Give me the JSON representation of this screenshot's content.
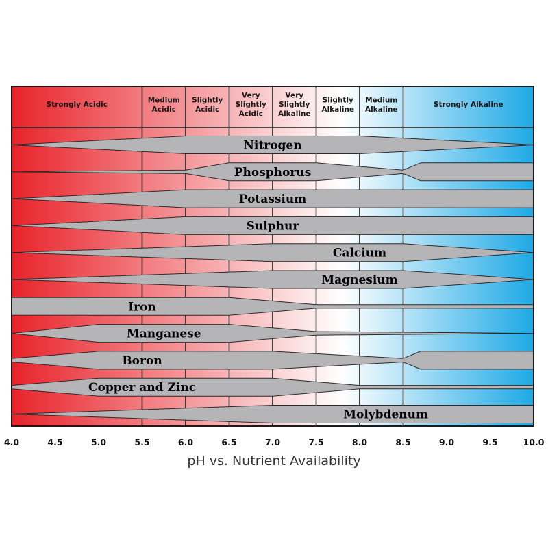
{
  "chart_data": {
    "type": "area",
    "title": "pH vs. Nutrient Availability",
    "xlim": [
      4.0,
      10.0
    ],
    "x_ticks": [
      "4.0",
      "4.5",
      "5.0",
      "5.5",
      "6.0",
      "6.5",
      "7.0",
      "7.5",
      "8.0",
      "8.5",
      "9.0",
      "9.5",
      "10.0"
    ],
    "zones": [
      {
        "label": [
          "Strongly Acidic"
        ],
        "from": 4.0,
        "to": 5.5
      },
      {
        "label": [
          "Medium",
          "Acidic"
        ],
        "from": 5.5,
        "to": 6.0
      },
      {
        "label": [
          "Slightly",
          "Acidic"
        ],
        "from": 6.0,
        "to": 6.5
      },
      {
        "label": [
          "Very",
          "Slightly",
          "Acidic"
        ],
        "from": 6.5,
        "to": 7.0
      },
      {
        "label": [
          "Very",
          "Slightly",
          "Alkaline"
        ],
        "from": 7.0,
        "to": 7.5
      },
      {
        "label": [
          "Slightly",
          "Alkaline"
        ],
        "from": 7.5,
        "to": 8.0
      },
      {
        "label": [
          "Medium",
          "Alkaline"
        ],
        "from": 8.0,
        "to": 8.5
      },
      {
        "label": [
          "Strongly Alkaline"
        ],
        "from": 8.5,
        "to": 10.0
      }
    ],
    "series": [
      {
        "name": "Nitrogen",
        "label_at": 7.0,
        "profile": [
          [
            4.0,
            0.0
          ],
          [
            6.0,
            1.0
          ],
          [
            8.0,
            1.0
          ],
          [
            10.0,
            0.0
          ]
        ]
      },
      {
        "name": "Phosphorus",
        "label_at": 7.0,
        "profile": [
          [
            4.0,
            0.0
          ],
          [
            6.0,
            0.2
          ],
          [
            6.5,
            1.0
          ],
          [
            7.5,
            1.0
          ],
          [
            8.5,
            0.2
          ],
          [
            8.7,
            1.0
          ],
          [
            10.0,
            1.0
          ]
        ]
      },
      {
        "name": "Potassium",
        "label_at": 7.0,
        "profile": [
          [
            4.0,
            0.0
          ],
          [
            6.0,
            1.0
          ],
          [
            10.0,
            1.0
          ]
        ]
      },
      {
        "name": "Sulphur",
        "label_at": 7.0,
        "profile": [
          [
            4.0,
            0.0
          ],
          [
            6.0,
            1.0
          ],
          [
            10.0,
            1.0
          ]
        ]
      },
      {
        "name": "Calcium",
        "label_at": 8.0,
        "profile": [
          [
            4.0,
            0.0
          ],
          [
            7.0,
            1.0
          ],
          [
            8.5,
            1.0
          ],
          [
            10.0,
            0.0
          ]
        ]
      },
      {
        "name": "Magnesium",
        "label_at": 8.0,
        "profile": [
          [
            4.0,
            0.0
          ],
          [
            7.0,
            1.0
          ],
          [
            8.5,
            1.0
          ],
          [
            10.0,
            0.0
          ]
        ]
      },
      {
        "name": "Iron",
        "label_at": 5.5,
        "profile": [
          [
            4.0,
            1.0
          ],
          [
            6.5,
            1.0
          ],
          [
            7.5,
            0.2
          ],
          [
            10.0,
            0.2
          ]
        ]
      },
      {
        "name": "Manganese",
        "label_at": 5.75,
        "profile": [
          [
            4.0,
            0.0
          ],
          [
            5.0,
            1.0
          ],
          [
            6.5,
            1.0
          ],
          [
            7.5,
            0.2
          ],
          [
            10.0,
            0.0
          ]
        ]
      },
      {
        "name": "Boron",
        "label_at": 5.5,
        "profile": [
          [
            4.0,
            0.2
          ],
          [
            5.0,
            1.0
          ],
          [
            7.0,
            1.0
          ],
          [
            8.5,
            0.2
          ],
          [
            8.7,
            1.0
          ],
          [
            10.0,
            1.0
          ]
        ]
      },
      {
        "name": "Copper and Zinc",
        "label_at": 5.5,
        "profile": [
          [
            4.0,
            0.2
          ],
          [
            5.0,
            1.0
          ],
          [
            7.0,
            1.0
          ],
          [
            8.0,
            0.2
          ],
          [
            10.0,
            0.2
          ]
        ]
      },
      {
        "name": "Molybdenum",
        "label_at": 8.3,
        "profile": [
          [
            4.0,
            0.0
          ],
          [
            7.0,
            1.0
          ],
          [
            10.0,
            1.0
          ]
        ]
      }
    ],
    "colors": {
      "acid": "#e8232a",
      "neutral": "#ffffff",
      "alkaline": "#1ea9e6",
      "band_fill": "#b5b5b7",
      "band_stroke": "#2a2a2a",
      "grid": "#1a1a1a"
    },
    "grid": true
  }
}
